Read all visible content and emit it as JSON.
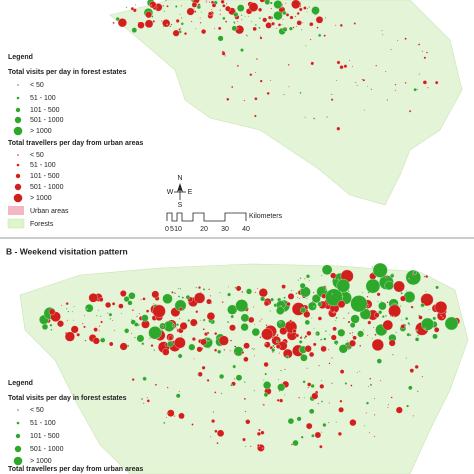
{
  "panel_a": {
    "legend": {
      "title": "Legend",
      "visits_title": "Total visits per day in forest estates",
      "visits_classes": [
        "< 50",
        "51 - 100",
        "101 - 500",
        "501 - 1000",
        "> 1000"
      ],
      "travellers_title": "Total travellers per day from urban areas",
      "travellers_classes": [
        "< 50",
        "51 - 100",
        "101 - 500",
        "501 - 1000",
        "> 1000"
      ],
      "urban": "Urban areas",
      "forests": "Forests"
    },
    "north": {
      "n": "N",
      "w": "W",
      "e": "E",
      "s": "S"
    },
    "scale": {
      "unit": "Kilometers",
      "ticks": [
        "0",
        "5",
        "10",
        "20",
        "30",
        "40"
      ]
    }
  },
  "panel_b": {
    "title": "B - Weekend visitation pattern",
    "legend": {
      "title": "Legend",
      "visits_title": "Total visits per day in forest estates",
      "visits_classes": [
        "< 50",
        "51 - 100",
        "101 - 500",
        "501 - 1000",
        "> 1000"
      ],
      "travellers_title": "Total travellers per day from urban areas"
    }
  }
}
